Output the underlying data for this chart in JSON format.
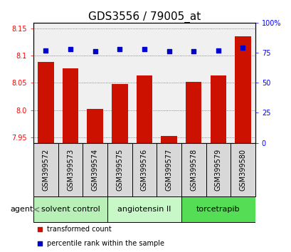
{
  "title": "GDS3556 / 79005_at",
  "samples": [
    "GSM399572",
    "GSM399573",
    "GSM399574",
    "GSM399575",
    "GSM399576",
    "GSM399577",
    "GSM399578",
    "GSM399579",
    "GSM399580"
  ],
  "bar_values": [
    8.088,
    8.076,
    8.002,
    8.048,
    8.063,
    7.952,
    8.052,
    8.063,
    8.135
  ],
  "blue_values": [
    77,
    78,
    76,
    78,
    78,
    76,
    76,
    77,
    79
  ],
  "ylim_left": [
    7.94,
    8.16
  ],
  "ylim_right": [
    0,
    100
  ],
  "yticks_left": [
    7.95,
    8.0,
    8.05,
    8.1,
    8.15
  ],
  "yticks_right": [
    0,
    25,
    50,
    75,
    100
  ],
  "ytick_labels_right": [
    "0",
    "25",
    "50",
    "75",
    "100%"
  ],
  "groups": [
    {
      "label": "solvent control",
      "start": 0,
      "end": 3,
      "color": "#b8f0b8"
    },
    {
      "label": "angiotensin II",
      "start": 3,
      "end": 6,
      "color": "#c8f8c8"
    },
    {
      "label": "torcetrapib",
      "start": 6,
      "end": 9,
      "color": "#55dd55"
    }
  ],
  "bar_color": "#cc1100",
  "dot_color": "#0000cc",
  "bar_bottom": 7.94,
  "agent_label": "agent",
  "legend_bar_label": "transformed count",
  "legend_dot_label": "percentile rank within the sample",
  "background_plot": "#f0f0f0",
  "grid_color": "#666666",
  "title_fontsize": 11,
  "tick_label_fontsize": 7,
  "sample_label_fontsize": 7,
  "group_label_fontsize": 8
}
